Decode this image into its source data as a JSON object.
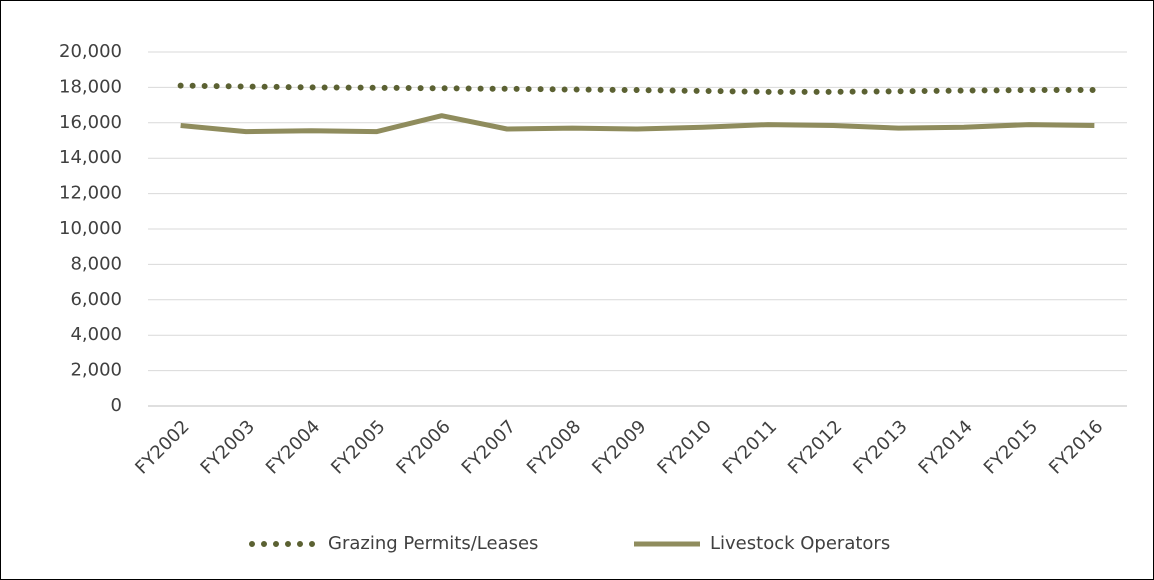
{
  "chart_data": {
    "type": "line",
    "categories": [
      "FY2002",
      "FY2003",
      "FY2004",
      "FY2005",
      "FY2006",
      "FY2007",
      "FY2008",
      "FY2009",
      "FY2010",
      "FY2011",
      "FY2012",
      "FY2013",
      "FY2014",
      "FY2015",
      "FY2016"
    ],
    "series": [
      {
        "name": "Grazing Permits/Leases",
        "color": "#5b6132",
        "dash": "dotted",
        "values": [
          18100,
          18050,
          18000,
          17980,
          17950,
          17920,
          17880,
          17850,
          17800,
          17750,
          17750,
          17780,
          17820,
          17850,
          17850
        ]
      },
      {
        "name": "Livestock Operators",
        "color": "#8f8c5d",
        "dash": "solid",
        "values": [
          15850,
          15500,
          15550,
          15500,
          16400,
          15650,
          15700,
          15650,
          15750,
          15900,
          15850,
          15700,
          15750,
          15900,
          15850
        ]
      }
    ],
    "ylim": [
      0,
      20000
    ],
    "yticks": [
      0,
      {
        "value": 2000,
        "label": "2,000"
      },
      {
        "value": 4000,
        "label": "4,000"
      },
      {
        "value": 6000,
        "label": "6,000"
      },
      {
        "value": 8000,
        "label": "8,000"
      },
      {
        "value": 10000,
        "label": "10,000"
      },
      {
        "value": 12000,
        "label": "12,000"
      },
      {
        "value": 14000,
        "label": "14,000"
      },
      {
        "value": 16000,
        "label": "16,000"
      },
      {
        "value": 18000,
        "label": "18,000"
      },
      {
        "value": 20000,
        "label": "20,000"
      }
    ],
    "grid": true,
    "legend": "bottom"
  }
}
